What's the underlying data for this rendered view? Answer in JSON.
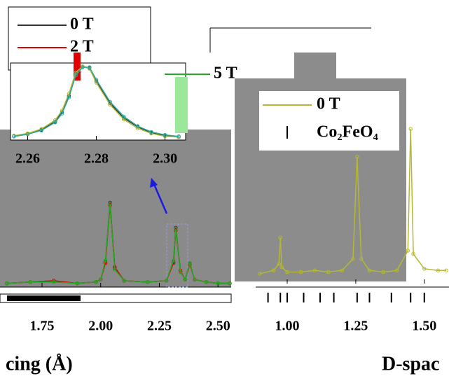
{
  "chart_data": [
    {
      "type": "line",
      "xlabel": "cing (Å)",
      "x": [
        1.6,
        1.7,
        1.8,
        1.9,
        1.98,
        2.0,
        2.02,
        2.04,
        2.06,
        2.1,
        2.2,
        2.28,
        2.31,
        2.32,
        2.34,
        2.36,
        2.38,
        2.4,
        2.45,
        2.5,
        2.55
      ],
      "series": [
        {
          "name": "0 T",
          "color": "#333333",
          "values": [
            3,
            4,
            5,
            3,
            4,
            6,
            20,
            67,
            15,
            5,
            4,
            5,
            20,
            47,
            12,
            6,
            19,
            6,
            4,
            3,
            3
          ]
        },
        {
          "name": "2 T",
          "color": "#e00000",
          "values": [
            3,
            4,
            5,
            3,
            4,
            6,
            19,
            65,
            16,
            5,
            4,
            5,
            19,
            45,
            13,
            6,
            18,
            6,
            4,
            3,
            3
          ]
        },
        {
          "name": "5 T",
          "color": "#22aa22",
          "values": [
            3,
            4,
            4,
            3,
            4,
            6,
            21,
            66,
            14,
            5,
            4,
            5,
            21,
            46,
            12,
            6,
            19,
            6,
            4,
            3,
            3
          ]
        }
      ],
      "xlim": [
        1.571,
        2.556
      ],
      "ylim": [
        0,
        100
      ],
      "xticks": [
        1.75,
        {
          "value": 2,
          "label": "2.00"
        },
        2.25,
        {
          "value": 2.5,
          "label": "2.50"
        }
      ]
    },
    {
      "type": "line",
      "x": [
        2.256,
        2.26,
        2.264,
        2.268,
        2.27,
        2.272,
        2.274,
        2.276,
        2.278,
        2.28,
        2.284,
        2.288,
        2.292,
        2.296,
        2.3,
        2.304
      ],
      "series": [
        {
          "color": "#333333",
          "values": [
            5,
            8,
            14,
            25,
            38,
            60,
            90,
            100,
            98,
            80,
            50,
            30,
            18,
            10,
            6,
            4
          ]
        },
        {
          "color": "#b5b832",
          "values": [
            6,
            9,
            15,
            27,
            40,
            63,
            92,
            100,
            97,
            78,
            48,
            28,
            16,
            9,
            5,
            4
          ]
        },
        {
          "color": "#2aa8a0",
          "values": [
            5,
            8,
            13,
            24,
            36,
            58,
            88,
            99,
            99,
            82,
            52,
            32,
            19,
            11,
            7,
            5
          ]
        }
      ],
      "xlim": [
        2.255,
        2.306
      ],
      "ylim": [
        0,
        100
      ],
      "xticks": [
        2.26,
        2.28,
        {
          "value": 2.3,
          "label": "2.30"
        }
      ]
    },
    {
      "type": "line",
      "xlabel": "D-spac",
      "reference_name": "Co₂FeO₄",
      "x": [
        0.9,
        0.95,
        0.97,
        0.975,
        0.98,
        1.0,
        1.05,
        1.1,
        1.15,
        1.2,
        1.24,
        1.255,
        1.27,
        1.3,
        1.35,
        1.4,
        1.44,
        1.45,
        1.46,
        1.5,
        1.55,
        1.58
      ],
      "series": [
        {
          "name": "0 T",
          "color": "#b5b832",
          "values": [
            6,
            8,
            12,
            28,
            10,
            7,
            7,
            8,
            7,
            8,
            15,
            77,
            15,
            8,
            7,
            8,
            20,
            94,
            18,
            9,
            8,
            8
          ]
        }
      ],
      "reference_positions": [
        0.93,
        0.975,
        1.0,
        1.06,
        1.12,
        1.17,
        1.255,
        1.3,
        1.38,
        1.45,
        1.5
      ],
      "xlim": [
        0.885,
        1.59
      ],
      "ylim": [
        0,
        100
      ],
      "xticks": [
        {
          "value": 1,
          "label": "1.00"
        },
        1.25,
        {
          "value": 1.5,
          "label": "1.50"
        }
      ]
    }
  ]
}
